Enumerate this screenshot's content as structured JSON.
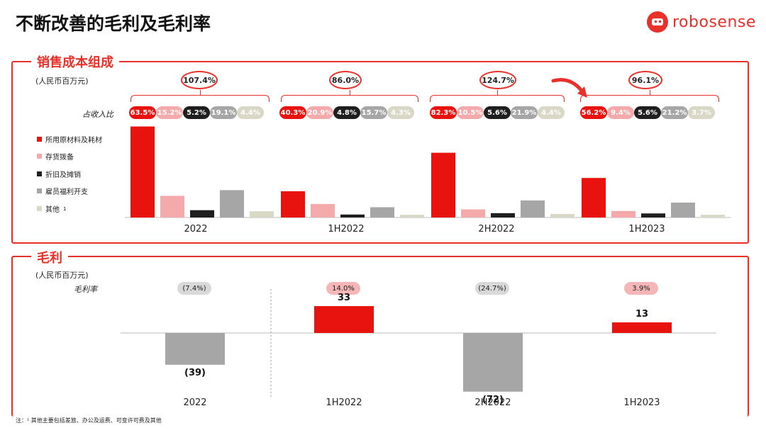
{
  "header": {
    "title": "不断改善的毛利及毛利率",
    "brand": "robosense"
  },
  "cost_section": {
    "title": "销售成本组成",
    "unit": "(人民币百万元)",
    "ratio_label": "占收入比",
    "legend": [
      {
        "name": "所用原材料及耗材",
        "color": "#e8130f"
      },
      {
        "name": "存货拨备",
        "color": "#f4a9ab"
      },
      {
        "name": "折旧及摊销",
        "color": "#1f1f1f"
      },
      {
        "name": "雇员福利开支",
        "color": "#a6a6a6"
      },
      {
        "name": "其他",
        "color": "#d9d7c5"
      }
    ],
    "legend_superscript": "1",
    "periods": [
      {
        "label": "2022",
        "total_ratio": "107.4%",
        "ratios": [
          "63.5%",
          "15.2%",
          "5.2%",
          "19.1%",
          "4.4%"
        ]
      },
      {
        "label": "1H2022",
        "total_ratio": "86.0%",
        "ratios": [
          "40.3%",
          "20.9%",
          "4.8%",
          "15.7%",
          "4.3%"
        ]
      },
      {
        "label": "2H2022",
        "total_ratio": "124.7%",
        "ratios": [
          "82.3%",
          "10.5%",
          "5.6%",
          "21.9%",
          "4.4%"
        ]
      },
      {
        "label": "1H2023",
        "total_ratio": "96.1%",
        "ratios": [
          "56.2%",
          "9.4%",
          "5.6%",
          "21.2%",
          "3.7%"
        ]
      }
    ]
  },
  "gross_section": {
    "title": "毛利",
    "unit": "(人民币百万元)",
    "margin_label": "毛利率",
    "periods": [
      {
        "label": "2022",
        "margin": "(7.4%)",
        "value_text": "(39)",
        "pill_color": "#d9d9d9"
      },
      {
        "label": "1H2022",
        "margin": "14.0%",
        "value_text": "33",
        "pill_color": "#f4b6b6"
      },
      {
        "label": "2H2022",
        "margin": "(24.7%)",
        "value_text": "(72)",
        "pill_color": "#d9d9d9"
      },
      {
        "label": "1H2023",
        "margin": "3.9%",
        "value_text": "13",
        "pill_color": "#f4b6b6"
      }
    ]
  },
  "footnote": "注：¹ 其他主要包括差旅、办公及运费、可变许可费及其他",
  "chart_data": [
    {
      "type": "bar",
      "title": "销售成本组成",
      "ylabel": "(人民币百万元)",
      "categories": [
        "2022",
        "1H2022",
        "2H2022",
        "1H2023"
      ],
      "series": [
        {
          "name": "所用原材料及耗材",
          "values": [
            336,
            97,
            239,
            146
          ]
        },
        {
          "name": "存货拨备",
          "values": [
            80,
            50,
            30,
            24
          ]
        },
        {
          "name": "折旧及摊销",
          "values": [
            27,
            11,
            16,
            15
          ]
        },
        {
          "name": "雇员福利开支",
          "values": [
            101,
            38,
            63,
            55
          ]
        },
        {
          "name": "其他",
          "values": [
            23,
            10,
            13,
            10
          ]
        }
      ],
      "ylim": [
        0,
        340
      ]
    },
    {
      "type": "bar",
      "title": "毛利",
      "ylabel": "(人民币百万元)",
      "categories": [
        "2022",
        "1H2022",
        "2H2022",
        "1H2023"
      ],
      "values": [
        -39,
        33,
        -72,
        13
      ],
      "colors": [
        "#a6a6a6",
        "#e8130f",
        "#a6a6a6",
        "#e8130f"
      ],
      "ylim": [
        -80,
        40
      ]
    }
  ]
}
